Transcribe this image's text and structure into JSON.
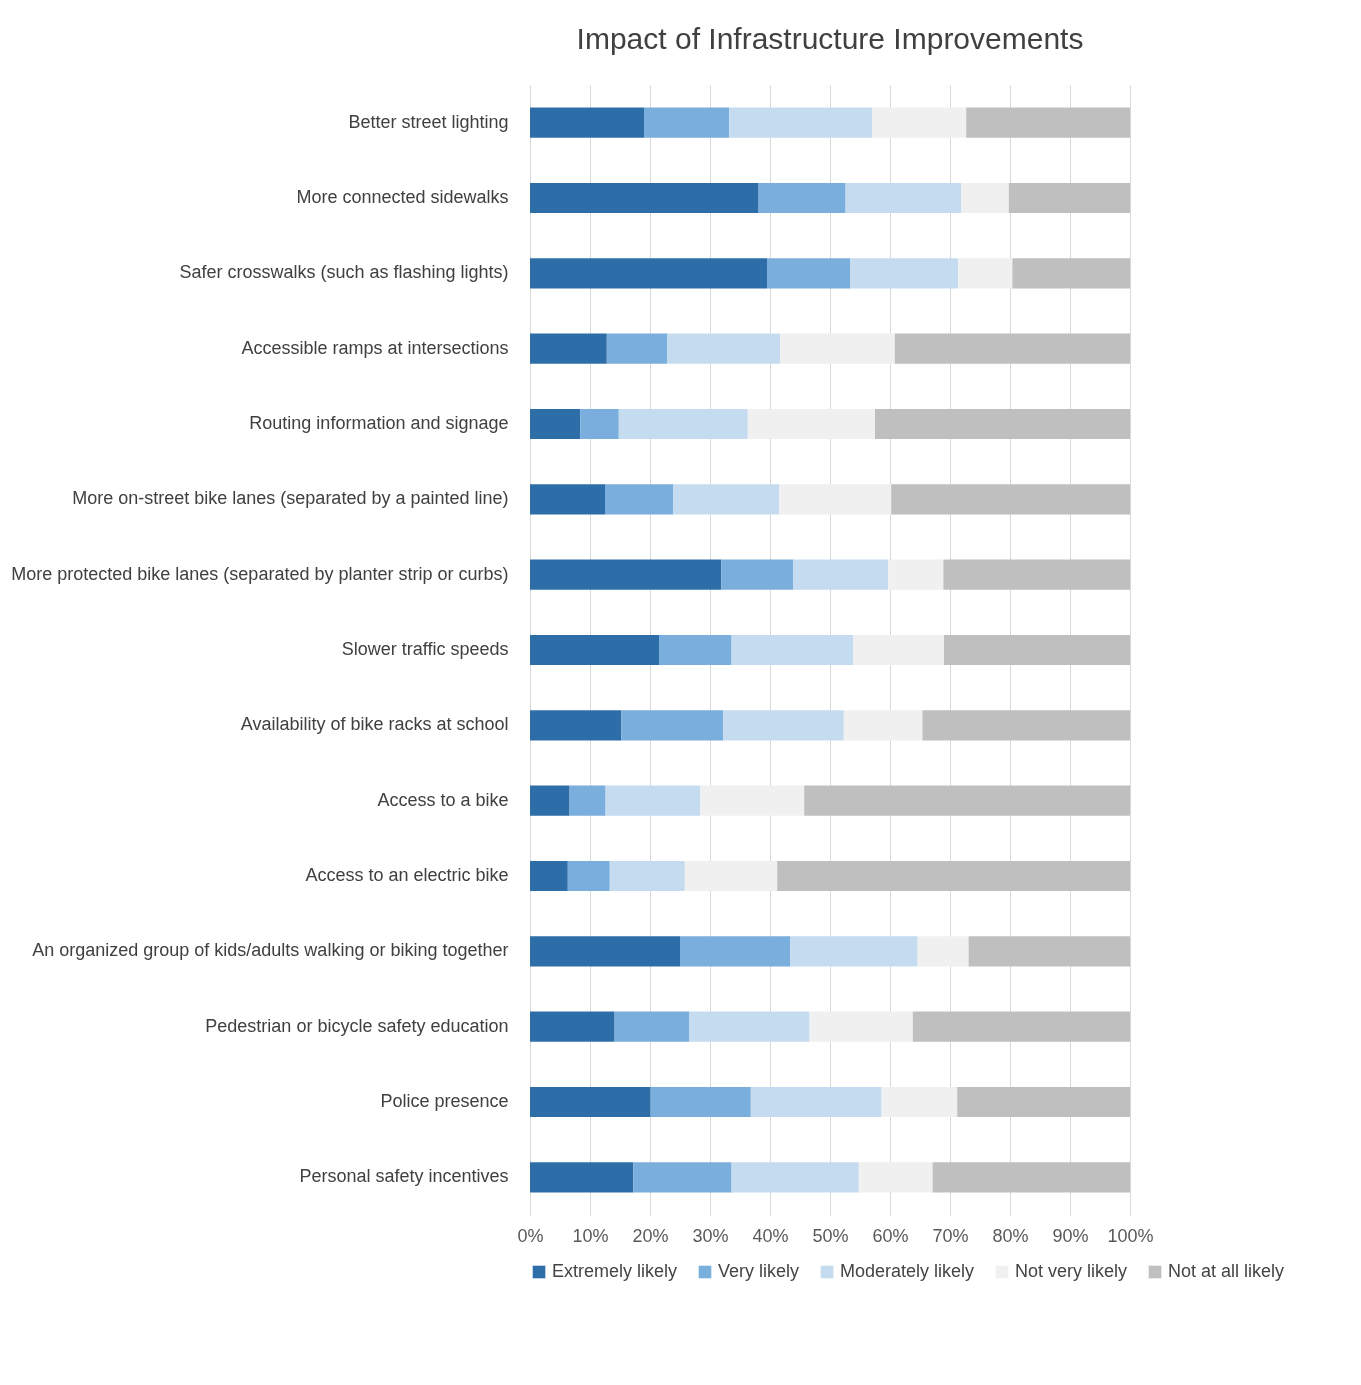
{
  "chart_data": {
    "type": "bar",
    "orientation": "horizontal",
    "stacked": true,
    "title": "Impact of Infrastructure Improvements",
    "categories": [
      "Better street lighting",
      "More connected sidewalks",
      "Safer crosswalks (such as flashing lights)",
      "Accessible ramps at intersections",
      "Routing information and signage",
      "More on-street bike lanes (separated by a painted line)",
      "More protected bike lanes (separated by planter strip or curbs)",
      "Slower traffic speeds",
      "Availability of bike racks at school",
      "Access to a bike",
      "Access to an electric bike",
      "An organized group of kids/adults walking or biking together",
      "Pedestrian or bicycle safety education",
      "Police presence",
      "Personal safety incentives"
    ],
    "series": [
      {
        "name": "Extremely likely",
        "color": "#2e6ea8",
        "values": [
          19.0,
          38.1,
          39.5,
          12.8,
          8.4,
          12.5,
          31.9,
          21.5,
          15.2,
          6.6,
          6.3,
          25.0,
          14.1,
          20.1,
          17.2
        ]
      },
      {
        "name": "Very likely",
        "color": "#7aaedd",
        "values": [
          14.2,
          14.5,
          13.9,
          10.1,
          6.4,
          11.4,
          12.0,
          12.1,
          17.0,
          6.0,
          7.0,
          18.4,
          12.4,
          16.7,
          16.4
        ]
      },
      {
        "name": "Moderately likely",
        "color": "#c5dbef",
        "values": [
          23.8,
          19.3,
          18.0,
          18.8,
          21.5,
          17.6,
          15.8,
          20.3,
          20.1,
          15.8,
          12.5,
          21.2,
          20.1,
          21.8,
          21.2
        ]
      },
      {
        "name": "Not very likely",
        "color": "#f0f0f0",
        "values": [
          15.7,
          7.9,
          9.0,
          19.1,
          21.2,
          18.7,
          9.2,
          15.1,
          13.1,
          17.3,
          15.4,
          8.5,
          17.2,
          12.6,
          12.3
        ]
      },
      {
        "name": "Not at all likely",
        "color": "#bfbfbf",
        "values": [
          27.3,
          20.2,
          19.6,
          39.2,
          42.5,
          39.8,
          31.1,
          31.0,
          34.6,
          54.3,
          58.8,
          26.9,
          36.2,
          28.8,
          32.9
        ]
      }
    ],
    "xlim": [
      0,
      100
    ],
    "xticks": [
      {
        "value": 0,
        "label": "0%"
      },
      {
        "value": 10,
        "label": "10%"
      },
      {
        "value": 20,
        "label": "20%"
      },
      {
        "value": 30,
        "label": "30%"
      },
      {
        "value": 40,
        "label": "40%"
      },
      {
        "value": 50,
        "label": "50%"
      },
      {
        "value": 60,
        "label": "60%"
      },
      {
        "value": 70,
        "label": "70%"
      },
      {
        "value": 80,
        "label": "80%"
      },
      {
        "value": 90,
        "label": "90%"
      },
      {
        "value": 100,
        "label": "100%"
      }
    ],
    "grid": "x",
    "legend": "bottom"
  }
}
